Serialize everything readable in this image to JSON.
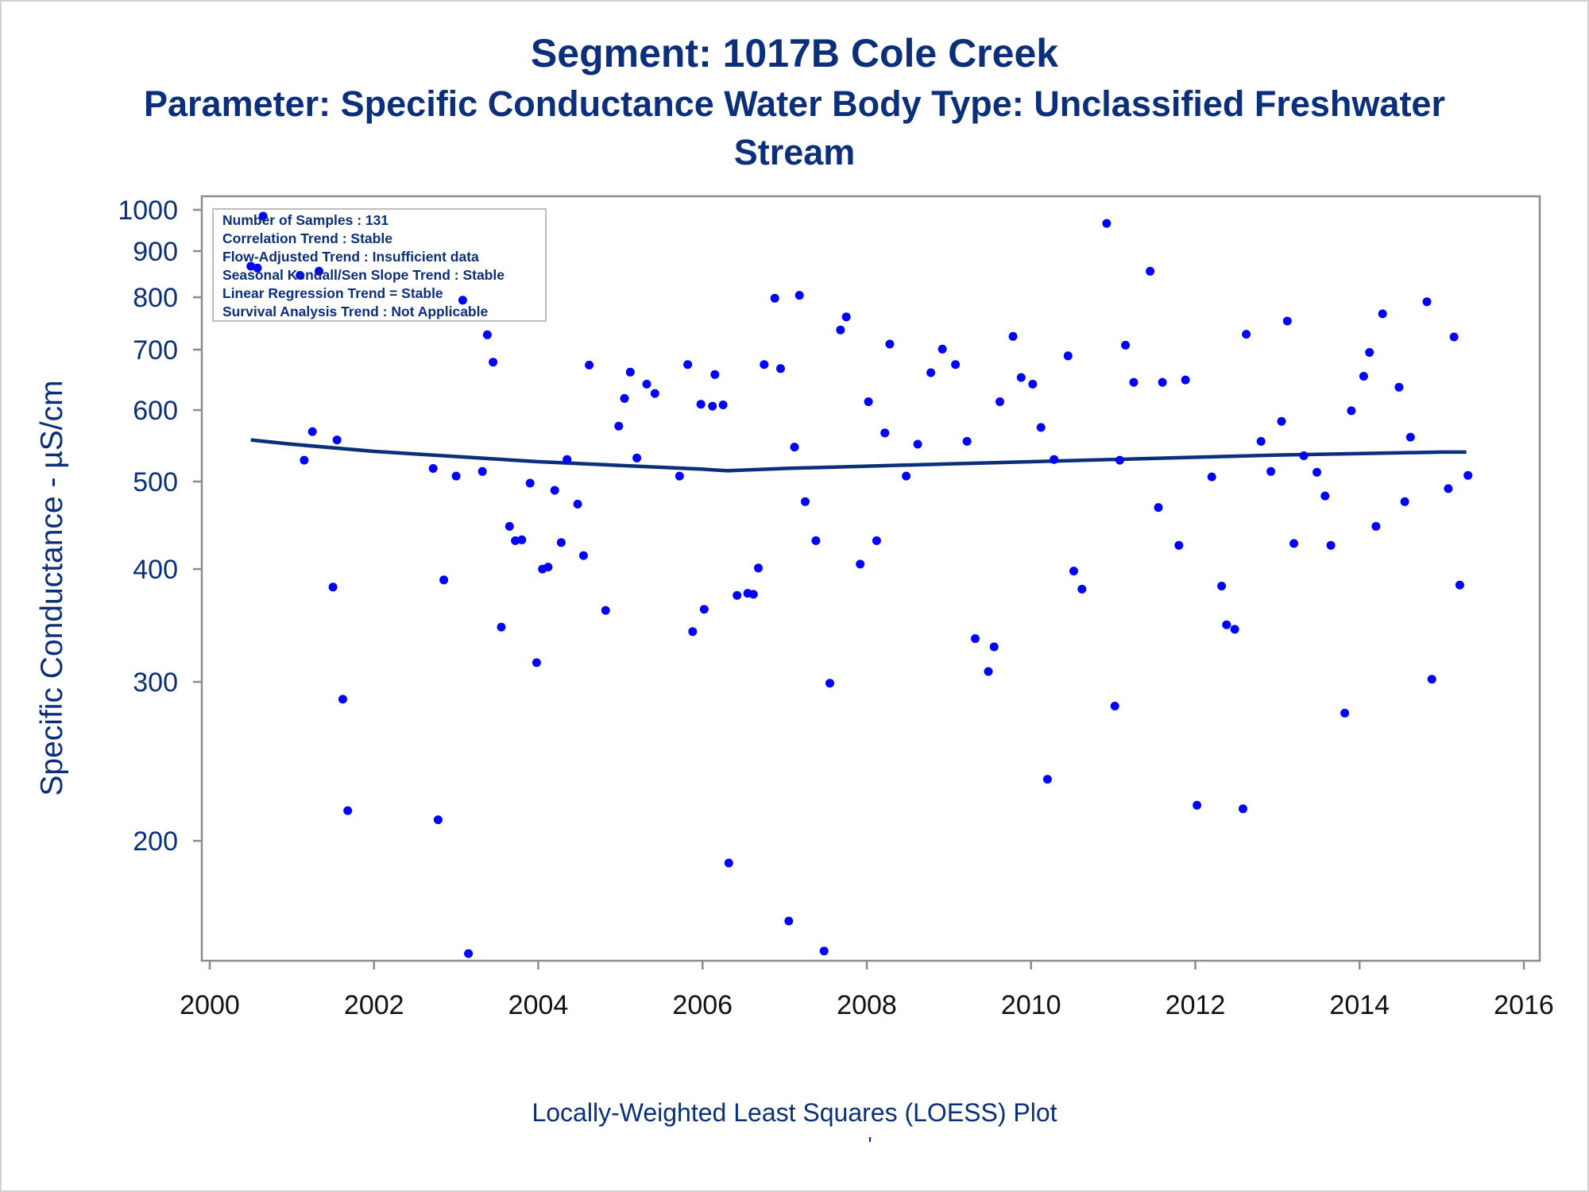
{
  "titles": {
    "line1": "Segment: 1017B  Cole Creek",
    "line2": "Parameter: Specific Conductance   Water Body Type: Unclassified Freshwater",
    "line3": "Stream"
  },
  "footnote": "Locally-Weighted Least Squares (LOESS) Plot",
  "footnote_mark": "'",
  "stats_box": [
    "Number of Samples : 131",
    "Correlation Trend : Stable",
    "Flow-Adjusted Trend : Insufficient data",
    "Seasonal Kendall/Sen Slope Trend : Stable",
    "Linear Regression Trend = Stable",
    "Survival Analysis Trend : Not Applicable"
  ],
  "colors": {
    "title": "#0b2f7a",
    "points": "#0000ff",
    "loess": "#0b2f7a",
    "axis": "#8c8c8c"
  },
  "chart_data": {
    "type": "scatter",
    "ylabel": "Specific Conductance -  µS/cm",
    "xlabel": "",
    "xlim": [
      2000,
      2016
    ],
    "ylim": [
      150,
      1000
    ],
    "yscale": "log",
    "xticks": [
      "2000",
      "2002",
      "2004",
      "2006",
      "2008",
      "2010",
      "2012",
      "2014",
      "2016"
    ],
    "yticks": [
      "1000",
      "900",
      "800",
      "700",
      "600",
      "500",
      "400",
      "300",
      "200"
    ],
    "grid": false,
    "series": [
      {
        "kind": "points",
        "points": [
          [
            2000.5,
            866
          ],
          [
            2000.58,
            862
          ],
          [
            2000.65,
            984
          ],
          [
            2001.1,
            846
          ],
          [
            2001.15,
            528
          ],
          [
            2001.25,
            568
          ],
          [
            2001.33,
            855
          ],
          [
            2001.5,
            382
          ],
          [
            2001.55,
            556
          ],
          [
            2001.62,
            287
          ],
          [
            2001.68,
            216
          ],
          [
            2002.72,
            517
          ],
          [
            2002.78,
            211
          ],
          [
            2002.85,
            389
          ],
          [
            2003.0,
            507
          ],
          [
            2003.08,
            794
          ],
          [
            2003.15,
            150
          ],
          [
            2003.32,
            513
          ],
          [
            2003.38,
            727
          ],
          [
            2003.45,
            678
          ],
          [
            2003.55,
            345
          ],
          [
            2003.65,
            446
          ],
          [
            2003.72,
            430
          ],
          [
            2003.8,
            431
          ],
          [
            2003.9,
            498
          ],
          [
            2003.98,
            315
          ],
          [
            2004.05,
            400
          ],
          [
            2004.12,
            402
          ],
          [
            2004.2,
            489
          ],
          [
            2004.28,
            428
          ],
          [
            2004.35,
            529
          ],
          [
            2004.48,
            472
          ],
          [
            2004.55,
            414
          ],
          [
            2004.62,
            673
          ],
          [
            2004.82,
            360
          ],
          [
            2004.98,
            576
          ],
          [
            2005.05,
            618
          ],
          [
            2005.12,
            661
          ],
          [
            2005.2,
            531
          ],
          [
            2005.32,
            641
          ],
          [
            2005.42,
            626
          ],
          [
            2005.72,
            507
          ],
          [
            2005.82,
            674
          ],
          [
            2005.88,
            341
          ],
          [
            2005.98,
            609
          ],
          [
            2006.02,
            361
          ],
          [
            2006.12,
            606
          ],
          [
            2006.15,
            657
          ],
          [
            2006.25,
            608
          ],
          [
            2006.32,
            189
          ],
          [
            2006.42,
            374
          ],
          [
            2006.55,
            376
          ],
          [
            2006.62,
            375
          ],
          [
            2006.68,
            401
          ],
          [
            2006.75,
            674
          ],
          [
            2006.88,
            798
          ],
          [
            2006.95,
            667
          ],
          [
            2007.05,
            163
          ],
          [
            2007.12,
            546
          ],
          [
            2007.18,
            804
          ],
          [
            2007.25,
            475
          ],
          [
            2007.38,
            430
          ],
          [
            2007.48,
            151
          ],
          [
            2007.55,
            299
          ],
          [
            2007.68,
            736
          ],
          [
            2007.75,
            761
          ],
          [
            2007.92,
            405
          ],
          [
            2008.02,
            613
          ],
          [
            2008.12,
            430
          ],
          [
            2008.22,
            566
          ],
          [
            2008.28,
            710
          ],
          [
            2008.48,
            507
          ],
          [
            2008.62,
            550
          ],
          [
            2008.78,
            660
          ],
          [
            2008.92,
            701
          ],
          [
            2009.08,
            674
          ],
          [
            2009.22,
            554
          ],
          [
            2009.32,
            335
          ],
          [
            2009.48,
            308
          ],
          [
            2009.55,
            328
          ],
          [
            2009.62,
            613
          ],
          [
            2009.78,
            724
          ],
          [
            2009.88,
            652
          ],
          [
            2010.02,
            641
          ],
          [
            2010.12,
            574
          ],
          [
            2010.2,
            234
          ],
          [
            2010.28,
            529
          ],
          [
            2010.45,
            689
          ],
          [
            2010.52,
            398
          ],
          [
            2010.62,
            380
          ],
          [
            2010.92,
            966
          ],
          [
            2011.02,
            282
          ],
          [
            2011.08,
            528
          ],
          [
            2011.15,
            708
          ],
          [
            2011.25,
            644
          ],
          [
            2011.45,
            855
          ],
          [
            2011.55,
            468
          ],
          [
            2011.6,
            644
          ],
          [
            2011.8,
            425
          ],
          [
            2011.88,
            648
          ],
          [
            2012.02,
            219
          ],
          [
            2012.2,
            506
          ],
          [
            2012.32,
            383
          ],
          [
            2012.38,
            347
          ],
          [
            2012.48,
            343
          ],
          [
            2012.58,
            217
          ],
          [
            2012.62,
            728
          ],
          [
            2012.8,
            554
          ],
          [
            2012.92,
            513
          ],
          [
            2013.05,
            583
          ],
          [
            2013.12,
            753
          ],
          [
            2013.2,
            427
          ],
          [
            2013.32,
            534
          ],
          [
            2013.48,
            512
          ],
          [
            2013.58,
            482
          ],
          [
            2013.65,
            425
          ],
          [
            2013.82,
            277
          ],
          [
            2013.9,
            599
          ],
          [
            2014.05,
            654
          ],
          [
            2014.12,
            695
          ],
          [
            2014.2,
            446
          ],
          [
            2014.28,
            767
          ],
          [
            2014.48,
            636
          ],
          [
            2014.55,
            475
          ],
          [
            2014.62,
            560
          ],
          [
            2014.82,
            791
          ],
          [
            2014.88,
            302
          ],
          [
            2015.08,
            491
          ],
          [
            2015.15,
            723
          ],
          [
            2015.22,
            384
          ],
          [
            2015.32,
            508
          ]
        ]
      },
      {
        "kind": "line",
        "points": [
          [
            2000.5,
            556
          ],
          [
            2001,
            550
          ],
          [
            2002,
            540
          ],
          [
            2003,
            533
          ],
          [
            2004,
            526
          ],
          [
            2005,
            521
          ],
          [
            2006,
            516
          ],
          [
            2006.3,
            514
          ],
          [
            2007,
            517
          ],
          [
            2008,
            520
          ],
          [
            2009,
            523
          ],
          [
            2010,
            526
          ],
          [
            2011,
            529
          ],
          [
            2012,
            532
          ],
          [
            2013,
            535
          ],
          [
            2014,
            537
          ],
          [
            2015,
            539
          ],
          [
            2015.3,
            539
          ]
        ]
      }
    ]
  }
}
